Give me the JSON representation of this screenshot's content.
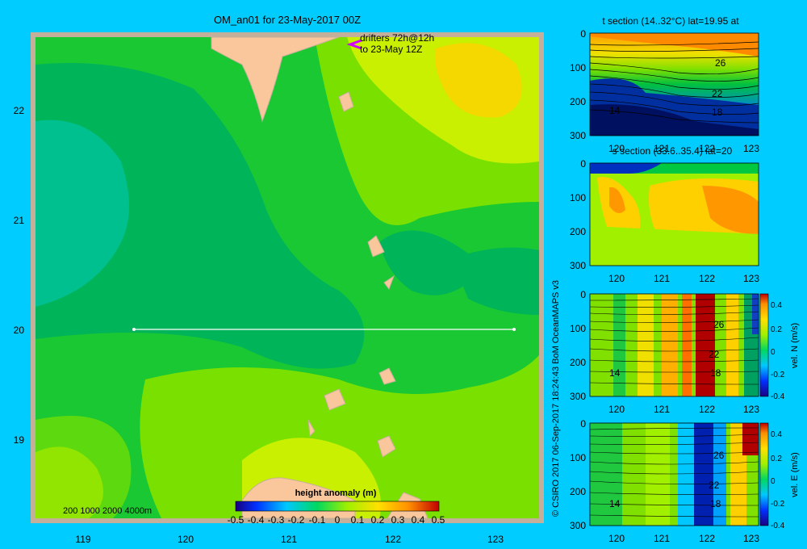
{
  "chart_data": [
    {
      "type": "heatmap",
      "title": "OM_an01 for 23-May-2017 00Z",
      "annotation": [
        "drifters 72h@12h",
        "to 23-May 12Z"
      ],
      "xlim": [
        118.5,
        123.5
      ],
      "ylim": [
        18.3,
        22.7
      ],
      "xticks": [
        "119",
        "120",
        "121",
        "122",
        "123"
      ],
      "yticks": [
        "19",
        "20",
        "21",
        "22"
      ],
      "section_line": {
        "x": [
          119.5,
          123.2
        ],
        "y": [
          20,
          20
        ]
      },
      "depth_contours_label": "200  1000  2000  4000m",
      "colorbar": {
        "label": "height anomaly  (m)",
        "ticks": [
          "-0.5",
          "-0.4",
          "-0.3",
          "-0.2",
          "-0.1",
          "0",
          "0.1",
          "0.2",
          "0.3",
          "0.4",
          "0.5"
        ]
      },
      "legend": "none",
      "grid": false
    },
    {
      "type": "heatmap",
      "title": "t section (14..32°C) lat=19.95 at",
      "xticks": [
        "120",
        "121",
        "122",
        "123"
      ],
      "yticks": [
        "0",
        "100",
        "200",
        "300"
      ],
      "contour_labels": [
        "26",
        "22",
        "18",
        "14"
      ]
    },
    {
      "type": "heatmap",
      "title": "s section (33.6..35.4) lat=20",
      "xticks": [
        "120",
        "121",
        "122",
        "123"
      ],
      "yticks": [
        "0",
        "100",
        "200",
        "300"
      ]
    },
    {
      "type": "heatmap",
      "title": "",
      "xticks": [
        "120",
        "121",
        "122",
        "123"
      ],
      "yticks": [
        "0",
        "100",
        "200",
        "300"
      ],
      "contour_labels": [
        "26",
        "22",
        "18",
        "14"
      ],
      "colorbar": {
        "label": "vel. N  (m/s)",
        "ticks": [
          "0.4",
          "0.2",
          "0",
          "-0.2",
          "-0.4"
        ]
      }
    },
    {
      "type": "heatmap",
      "title": "",
      "xticks": [
        "120",
        "121",
        "122",
        "123"
      ],
      "yticks": [
        "0",
        "100",
        "200",
        "300"
      ],
      "contour_labels": [
        "26",
        "22",
        "18",
        "14"
      ],
      "colorbar": {
        "label": "vel. E  (m/s)",
        "ticks": [
          "0.4",
          "0.2",
          "0",
          "-0.2",
          "-0.4"
        ]
      }
    }
  ],
  "credit": "© CSIRO 2017   06-Sep-2017 18:24:43 BoM OceanMAPS v3",
  "colors": {
    "background": "#00ccff",
    "land": "#f9c79b",
    "frame": "#c4b09a"
  }
}
